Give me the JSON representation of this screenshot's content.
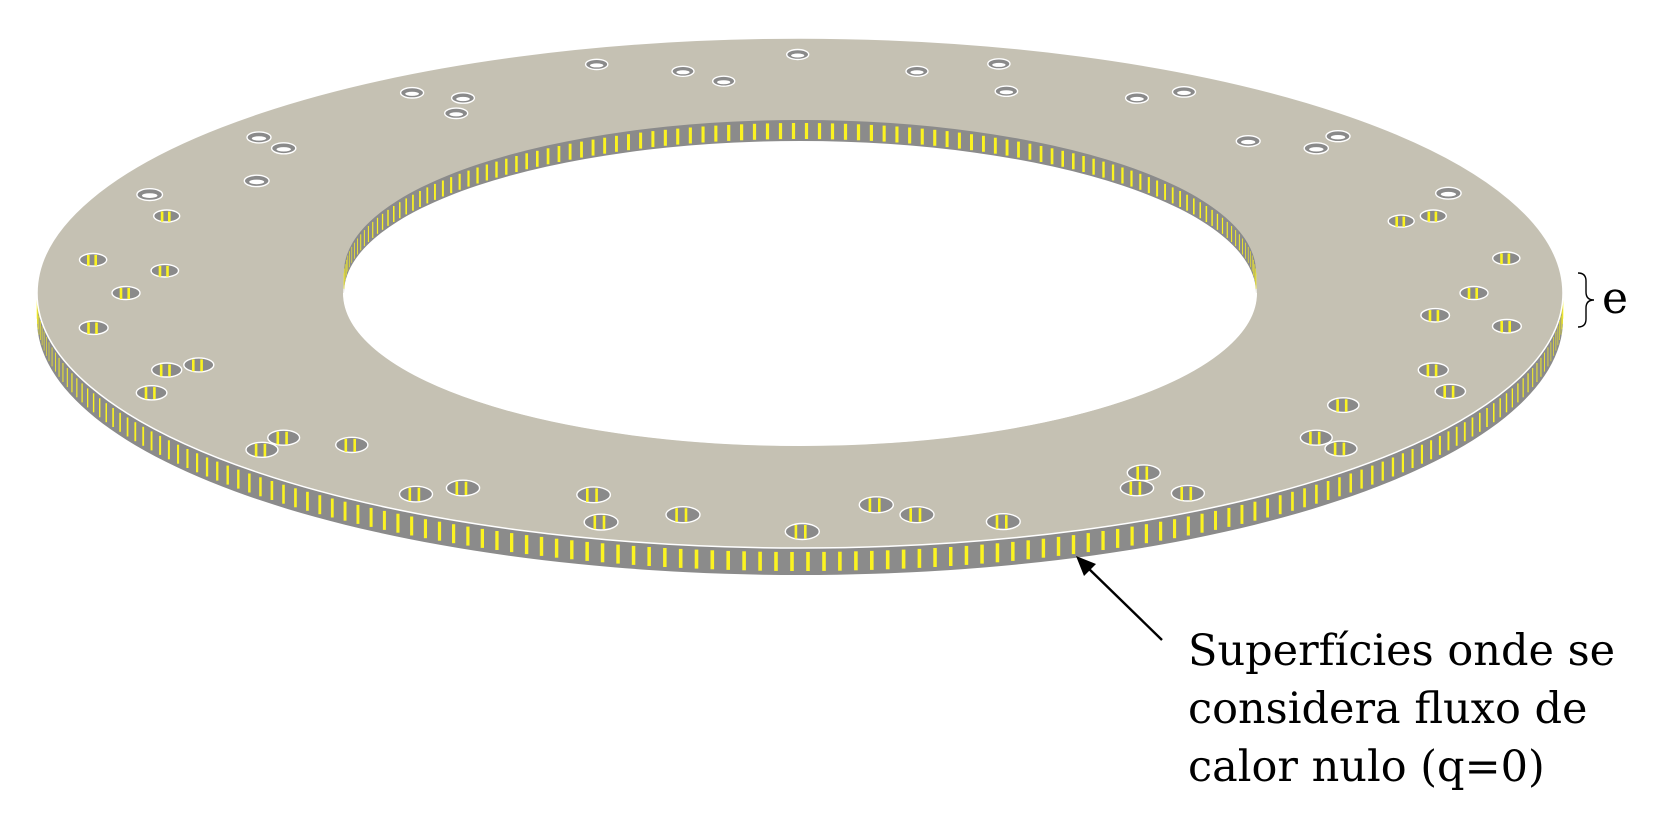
{
  "annotations": {
    "thickness_symbol": "e",
    "caption_lines": [
      "Superfícies onde se",
      "considera fluxo de",
      "calor nulo (q=0)"
    ]
  },
  "colors": {
    "top_face": "#c5c1b3",
    "side_face": "#8b8b8b",
    "side_dark": "#6a6a6a",
    "hole_inner": "#8a8a8a",
    "stripe": "#fbf321",
    "rim": "#ffffff",
    "leader": "#000000"
  },
  "pattern": {
    "outer_edge_stripes": 150,
    "inner_edge_stripes": 110,
    "hole_rings": [
      {
        "holes": 22,
        "phase_deg": 8
      },
      {
        "holes": 18,
        "phase_deg": 0
      },
      {
        "holes": 14,
        "phase_deg": 6
      }
    ]
  }
}
